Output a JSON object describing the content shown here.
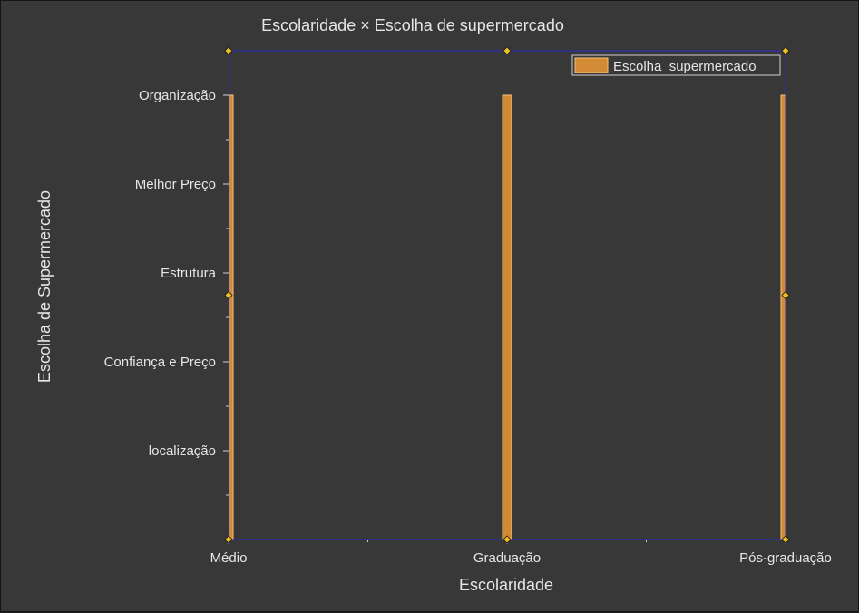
{
  "chart_data": {
    "type": "bar",
    "title": "Escolaridade × Escolha de supermercado",
    "xlabel": "Escolaridade",
    "ylabel": "Escolha de Supermercado",
    "categories": [
      "Médio",
      "Graduação",
      "Pós-graduação"
    ],
    "y_categories": [
      "localização",
      "Confiança e Preço",
      "Estrutura",
      "Melhor Preço",
      "Organização"
    ],
    "series": [
      {
        "name": "Escolha_supermercado",
        "values": [
          "Organização",
          "Organização",
          "Organização"
        ]
      }
    ],
    "legend": {
      "position": "top-right"
    },
    "grid": false,
    "colors": {
      "bar": "#d38a35",
      "bar_edge": "#f2c27a",
      "plot_border": "#2a2ad0",
      "handle": "#f0c020",
      "text": "#e6e6e6",
      "background": "#383838"
    }
  }
}
